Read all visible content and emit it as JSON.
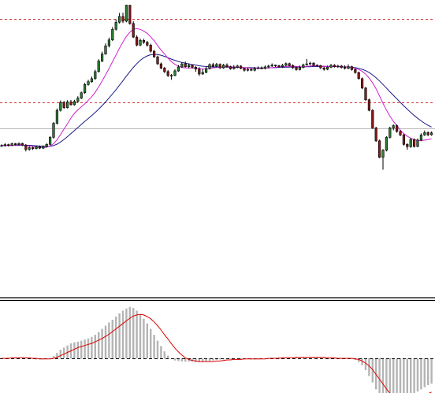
{
  "chart_data": [
    {
      "type": "candlestick",
      "panel": "price",
      "ylim": [
        0,
        100
      ],
      "grid": false,
      "candle_colors": {
        "up": "#2e7d32",
        "down": "#8b1a1a",
        "wick": "#000000"
      },
      "horizontal_levels": [
        {
          "value": 93.8,
          "style": "dashed",
          "color": "#cc3333"
        },
        {
          "value": 58.4,
          "style": "dashed",
          "color": "#cc3333"
        },
        {
          "value": 47.2,
          "style": "solid",
          "color": "#b8b8b8"
        }
      ],
      "candles": [
        [
          40,
          40,
          39.5,
          40.5
        ],
        [
          40,
          40.4,
          39.5,
          41
        ],
        [
          40.4,
          40,
          39.6,
          40.8
        ],
        [
          40,
          40.8,
          39.7,
          41.2
        ],
        [
          40.8,
          40.4,
          40,
          41.1
        ],
        [
          40.4,
          40.9,
          40.1,
          41.3
        ],
        [
          40.9,
          40.2,
          39.8,
          41.2
        ],
        [
          40.2,
          38.4,
          37.5,
          40.6
        ],
        [
          38.4,
          39.1,
          37.8,
          39.6
        ],
        [
          39.1,
          38.7,
          38.1,
          39.5
        ],
        [
          38.7,
          39.5,
          38.4,
          40
        ],
        [
          39.5,
          38.9,
          38.5,
          40
        ],
        [
          38.9,
          39.6,
          38.5,
          40.1
        ],
        [
          39.6,
          40.5,
          39.2,
          41
        ],
        [
          40.5,
          43.5,
          40.1,
          44
        ],
        [
          43.5,
          49.5,
          43,
          50
        ],
        [
          49.5,
          55,
          49,
          55.8
        ],
        [
          55,
          58.4,
          54.5,
          59.2
        ],
        [
          58.4,
          56.2,
          55.6,
          59
        ],
        [
          56.2,
          58.6,
          55.8,
          59.3
        ],
        [
          58.6,
          57.4,
          57,
          59.4
        ],
        [
          57.4,
          58.8,
          57,
          59.5
        ],
        [
          58.8,
          60.2,
          58.3,
          61
        ],
        [
          60.2,
          62.5,
          59.8,
          63
        ],
        [
          62.5,
          66,
          62,
          66.7
        ],
        [
          66,
          67.2,
          65.5,
          68
        ],
        [
          67.2,
          68.5,
          66.8,
          69.4
        ],
        [
          68.5,
          71.5,
          68,
          72.3
        ],
        [
          71.5,
          76,
          71.1,
          76.8
        ],
        [
          76,
          79,
          75.5,
          80
        ],
        [
          79,
          82.5,
          78.7,
          83.5
        ],
        [
          82.5,
          85,
          81.8,
          86
        ],
        [
          85,
          89.5,
          84.5,
          90.5
        ],
        [
          89.5,
          92.5,
          89,
          93.8
        ],
        [
          92.5,
          95,
          92,
          96.5
        ],
        [
          95,
          93,
          92.2,
          96.6
        ],
        [
          93,
          99.8,
          92.5,
          100
        ],
        [
          99.8,
          92,
          91.5,
          100
        ],
        [
          92,
          86.2,
          85.8,
          93
        ],
        [
          86.2,
          82.8,
          82.3,
          87
        ],
        [
          82.8,
          84.8,
          82.4,
          85.6
        ],
        [
          84.8,
          84,
          83.3,
          85.5
        ],
        [
          84,
          82.8,
          82.2,
          84.6
        ],
        [
          82.8,
          80.2,
          79.6,
          83.4
        ],
        [
          80.2,
          77.8,
          77.4,
          80.7
        ],
        [
          77.8,
          74.8,
          74.4,
          78.3
        ],
        [
          74.8,
          73,
          72.5,
          75.4
        ],
        [
          73,
          71.5,
          70.9,
          73.5
        ],
        [
          71.5,
          69.8,
          69.2,
          72.2
        ],
        [
          69.8,
          69.9,
          68,
          70.5
        ],
        [
          69.9,
          71.8,
          69.5,
          72.5
        ],
        [
          71.8,
          73.5,
          71.4,
          74.3
        ],
        [
          73.5,
          74.8,
          73.1,
          75.5
        ],
        [
          74.8,
          73.6,
          73.2,
          75.8
        ],
        [
          73.6,
          74.2,
          72.9,
          75
        ],
        [
          74.2,
          73.4,
          72.8,
          74.6
        ],
        [
          73.4,
          72.6,
          71.4,
          73.8
        ],
        [
          72.6,
          70.5,
          69.7,
          73.4
        ],
        [
          70.5,
          71.2,
          70.1,
          72.6
        ],
        [
          71.2,
          72.8,
          70.8,
          73.6
        ],
        [
          72.8,
          74.5,
          72.4,
          75
        ],
        [
          74.5,
          73.8,
          73.4,
          75.2
        ],
        [
          73.8,
          74.6,
          73.3,
          75.2
        ],
        [
          74.6,
          73.1,
          72.7,
          75
        ],
        [
          73.1,
          74.3,
          72.7,
          74.8
        ],
        [
          74.3,
          73.6,
          73.2,
          75
        ],
        [
          73.6,
          72.7,
          72.3,
          74
        ],
        [
          72.7,
          73.3,
          72.4,
          74.3
        ],
        [
          73.3,
          73.9,
          72.9,
          74.4
        ],
        [
          73.9,
          72.9,
          72.5,
          74.2
        ],
        [
          72.9,
          72.1,
          71.5,
          73.2
        ],
        [
          72.1,
          72.5,
          71.6,
          73.2
        ],
        [
          72.5,
          72.1,
          71.7,
          72.9
        ],
        [
          72.1,
          72.9,
          71.6,
          73.5
        ],
        [
          72.9,
          73.1,
          72.6,
          73.7
        ],
        [
          73.1,
          72.9,
          72.5,
          73.7
        ],
        [
          72.9,
          73.5,
          72.4,
          74.1
        ],
        [
          73.5,
          73.9,
          73,
          74.4
        ],
        [
          73.9,
          74.3,
          73.5,
          75
        ],
        [
          74.3,
          74,
          73.5,
          74.5
        ],
        [
          74,
          73.6,
          73.2,
          74.4
        ],
        [
          73.6,
          74.2,
          73.1,
          74.8
        ],
        [
          74.2,
          74.9,
          73.7,
          75.4
        ],
        [
          74.9,
          74.1,
          73.7,
          75.3
        ],
        [
          74.1,
          73.2,
          72.6,
          74.6
        ],
        [
          73.2,
          72.4,
          71.9,
          73.6
        ],
        [
          72.4,
          73.3,
          72,
          74.1
        ],
        [
          73.3,
          74.4,
          72.9,
          74.9
        ],
        [
          74.4,
          74.8,
          74,
          76.9
        ],
        [
          74.8,
          75.1,
          74.3,
          75.7
        ],
        [
          75.1,
          74.2,
          73.8,
          75.5
        ],
        [
          74.2,
          74,
          73.6,
          74.6
        ],
        [
          74,
          73.1,
          72.6,
          74.4
        ],
        [
          73.1,
          72.5,
          71.9,
          73.5
        ],
        [
          72.5,
          73.4,
          72.1,
          74.1
        ],
        [
          73.4,
          74.2,
          73,
          74.8
        ],
        [
          74.2,
          73.6,
          73.2,
          74.7
        ],
        [
          73.6,
          73.9,
          73.1,
          74.4
        ],
        [
          73.9,
          73.3,
          72.8,
          74.3
        ],
        [
          73.3,
          72.9,
          72.4,
          74.2
        ],
        [
          72.9,
          73.6,
          72.5,
          74.6
        ],
        [
          73.6,
          72.4,
          71.9,
          74
        ],
        [
          72.4,
          71.1,
          70.6,
          72.8
        ],
        [
          71.1,
          68.5,
          68.1,
          71.5
        ],
        [
          68.5,
          64.5,
          64,
          69
        ],
        [
          64.5,
          59.5,
          59,
          65
        ],
        [
          59.5,
          55,
          54.6,
          60
        ],
        [
          55,
          47.5,
          47.1,
          55.5
        ],
        [
          47.5,
          42,
          41.6,
          48
        ],
        [
          42,
          35,
          34.6,
          42.5
        ],
        [
          35,
          38,
          29.7,
          38.5
        ],
        [
          38,
          43.5,
          37.5,
          44
        ],
        [
          43.5,
          47.5,
          43,
          48
        ],
        [
          47.5,
          48.5,
          46.5,
          49
        ],
        [
          48.5,
          46,
          45.5,
          49
        ],
        [
          46,
          44.5,
          44,
          46.5
        ],
        [
          44.5,
          40.5,
          40,
          45
        ],
        [
          40.5,
          39.5,
          38.2,
          41
        ],
        [
          39.5,
          42.6,
          39,
          43.3
        ],
        [
          42.6,
          39.6,
          39.1,
          43
        ],
        [
          39.6,
          42.3,
          39.2,
          43
        ],
        [
          42.3,
          44.5,
          41.9,
          45.2
        ],
        [
          44.5,
          45.5,
          44.1,
          46.4
        ],
        [
          45.5,
          44.6,
          44,
          46
        ],
        [
          44.6,
          45.4,
          44.2,
          46
        ]
      ],
      "sma_fast": {
        "color": "#d020d0",
        "values": [
          40,
          40,
          40.1,
          40.1,
          40.2,
          40.3,
          40.3,
          40,
          39.8,
          39.6,
          39.3,
          39.2,
          39.1,
          39.3,
          39.8,
          40.8,
          42.4,
          44.7,
          47,
          49.3,
          51.7,
          53.7,
          55.2,
          56.5,
          57.8,
          59.3,
          60.8,
          62.7,
          65,
          67.5,
          70.1,
          72.9,
          75.7,
          78.6,
          81.5,
          84.1,
          86.5,
          88.3,
          89.5,
          89.8,
          89.5,
          88.8,
          87.8,
          86.3,
          84.7,
          82.6,
          80.7,
          79,
          77.2,
          75.7,
          74.6,
          73.8,
          73.3,
          73.1,
          73.1,
          73.1,
          73,
          72.8,
          72.6,
          72.7,
          72.9,
          73.1,
          73.3,
          73.5,
          73.6,
          73.6,
          73.6,
          73.5,
          73.4,
          73.3,
          73.2,
          73.1,
          73,
          72.9,
          72.9,
          72.9,
          73,
          73.1,
          73.2,
          73.4,
          73.5,
          73.6,
          73.7,
          73.8,
          73.8,
          73.7,
          73.6,
          73.6,
          73.7,
          73.9,
          74,
          74,
          73.9,
          73.8,
          73.7,
          73.7,
          73.7,
          73.6,
          73.6,
          73.5,
          73.4,
          73.2,
          72.9,
          72.4,
          71.6,
          70.4,
          68.8,
          66.7,
          64.2,
          61.1,
          58,
          55.1,
          52.5,
          50.3,
          48.4,
          46.6,
          45.1,
          44,
          43.1,
          42.5,
          42.2,
          42.1,
          42.3,
          42.6,
          42.9
        ]
      },
      "sma_slow": {
        "color": "#1a1a8a",
        "values": [
          40,
          40,
          40,
          40.1,
          40.1,
          40.1,
          40.2,
          40.1,
          40.1,
          40,
          39.9,
          39.8,
          39.7,
          39.6,
          39.7,
          40,
          40.6,
          41.5,
          42.6,
          43.8,
          45.1,
          46.4,
          47.7,
          49,
          50.3,
          51.5,
          52.8,
          54.1,
          55.5,
          57,
          58.6,
          60.3,
          62,
          63.8,
          65.7,
          67.6,
          69.6,
          71.5,
          73.3,
          74.9,
          76.3,
          77.4,
          78.2,
          78.7,
          78.9,
          78.8,
          78.5,
          78,
          77.4,
          76.8,
          76.3,
          75.8,
          75.4,
          75.1,
          74.8,
          74.5,
          74.3,
          74,
          73.8,
          73.7,
          73.6,
          73.5,
          73.5,
          73.4,
          73.4,
          73.4,
          73.4,
          73.3,
          73.3,
          73.3,
          73.2,
          73.2,
          73.2,
          73.1,
          73.1,
          73.1,
          73.1,
          73.1,
          73.2,
          73.2,
          73.3,
          73.3,
          73.4,
          73.4,
          73.5,
          73.5,
          73.5,
          73.5,
          73.6,
          73.6,
          73.7,
          73.7,
          73.7,
          73.7,
          73.7,
          73.7,
          73.7,
          73.7,
          73.6,
          73.6,
          73.5,
          73.4,
          73.2,
          72.9,
          72.5,
          71.9,
          71.1,
          70.1,
          68.9,
          67.5,
          66,
          64.5,
          62.9,
          61.4,
          59.9,
          58.4,
          56.9,
          55.5,
          54.1,
          52.8,
          51.6,
          50.5,
          49.5,
          48.6,
          47.9
        ]
      }
    },
    {
      "type": "bar",
      "panel": "oscillator",
      "ylim": [
        -1,
        1
      ],
      "zero_line": {
        "value": 0,
        "style": "dashed",
        "color": "#000000"
      },
      "bar_color": "#b4b4b4",
      "histogram": [
        0,
        0,
        0.01,
        0.01,
        0.02,
        0.02,
        0.02,
        0.01,
        0,
        -0.01,
        -0.02,
        -0.02,
        -0.02,
        -0.01,
        0,
        0.04,
        0.1,
        0.16,
        0.2,
        0.24,
        0.28,
        0.3,
        0.31,
        0.33,
        0.35,
        0.37,
        0.4,
        0.44,
        0.49,
        0.55,
        0.61,
        0.67,
        0.72,
        0.78,
        0.84,
        0.89,
        0.93,
        0.96,
        0.94,
        0.89,
        0.82,
        0.74,
        0.65,
        0.55,
        0.44,
        0.33,
        0.23,
        0.13,
        0.05,
        -0.01,
        -0.04,
        -0.05,
        -0.06,
        -0.06,
        -0.06,
        -0.06,
        -0.07,
        -0.07,
        -0.07,
        -0.06,
        -0.05,
        -0.04,
        -0.03,
        -0.02,
        -0.02,
        -0.01,
        -0.01,
        -0.01,
        -0.01,
        -0.01,
        -0.01,
        -0.01,
        -0.02,
        -0.02,
        -0.02,
        -0.01,
        0,
        0,
        0.01,
        0.01,
        0.02,
        0.02,
        0.02,
        0.02,
        0.02,
        0.02,
        0.01,
        0.01,
        0.01,
        0.02,
        0.02,
        0.02,
        0.01,
        0.01,
        0,
        0,
        0,
        0,
        0,
        0,
        0,
        -0.01,
        -0.03,
        -0.07,
        -0.13,
        -0.22,
        -0.33,
        -0.45,
        -0.58,
        -0.7,
        -0.8,
        -0.86,
        -0.88,
        -0.87,
        -0.84,
        -0.8,
        -0.77,
        -0.73,
        -0.7,
        -0.66,
        -0.62,
        -0.58,
        -0.54,
        -0.5,
        -0.47
      ],
      "signal": {
        "color": "#dd0000",
        "values": [
          0,
          0,
          0,
          0.01,
          0.01,
          0.01,
          0.01,
          0.01,
          0.01,
          0,
          0,
          -0.01,
          -0.01,
          -0.01,
          -0.01,
          0,
          0.02,
          0.05,
          0.08,
          0.11,
          0.14,
          0.17,
          0.2,
          0.22,
          0.24,
          0.26,
          0.28,
          0.31,
          0.34,
          0.37,
          0.41,
          0.45,
          0.5,
          0.55,
          0.6,
          0.65,
          0.7,
          0.75,
          0.79,
          0.81,
          0.82,
          0.81,
          0.78,
          0.74,
          0.68,
          0.61,
          0.53,
          0.44,
          0.36,
          0.27,
          0.19,
          0.12,
          0.06,
          0.01,
          -0.02,
          -0.04,
          -0.05,
          -0.06,
          -0.06,
          -0.06,
          -0.06,
          -0.06,
          -0.05,
          -0.05,
          -0.04,
          -0.03,
          -0.03,
          -0.02,
          -0.02,
          -0.02,
          -0.01,
          -0.01,
          -0.01,
          -0.01,
          -0.01,
          -0.01,
          -0.01,
          0,
          0,
          0,
          0,
          0.01,
          0.01,
          0.01,
          0.01,
          0.02,
          0.02,
          0.02,
          0.02,
          0.02,
          0.02,
          0.02,
          0.02,
          0.02,
          0.01,
          0.01,
          0.01,
          0,
          0,
          0,
          0,
          0,
          -0.01,
          -0.02,
          -0.05,
          -0.09,
          -0.14,
          -0.21,
          -0.3,
          -0.39,
          -0.48,
          -0.57,
          -0.65,
          -0.72,
          -0.77,
          -0.8,
          -0.82,
          -0.82,
          -0.81,
          -0.79,
          -0.76,
          -0.73,
          -0.7,
          -0.66,
          -0.63
        ]
      }
    }
  ]
}
